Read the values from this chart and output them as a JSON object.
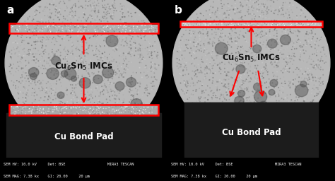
{
  "fig_width": 4.74,
  "fig_height": 2.56,
  "dpi": 100,
  "bg": "#000000",
  "panel_labels": [
    "a",
    "b"
  ],
  "imc_text": "Cu$_6$Sn$_5$ IMCs",
  "bond_text": "Cu Bond Pad",
  "bond_text_color": "#ffffff",
  "imc_text_color": "#111111",
  "label_color": "#ffffff",
  "red": "#ff0000",
  "status_bg": "#555555",
  "status_fg": "#ffffff",
  "ball_color": "#b8b8b8",
  "ball_dark": "#888888",
  "pad_color": "#111111",
  "imc_layer_color": "#c8c8c8",
  "sem_line1": "SEM HV: 10.0 kV     Det: BSE                   MIRA3 TESCAN",
  "sem_line2": "SEM MAG: 7.38 kx    GI: 20.00     20 μm"
}
